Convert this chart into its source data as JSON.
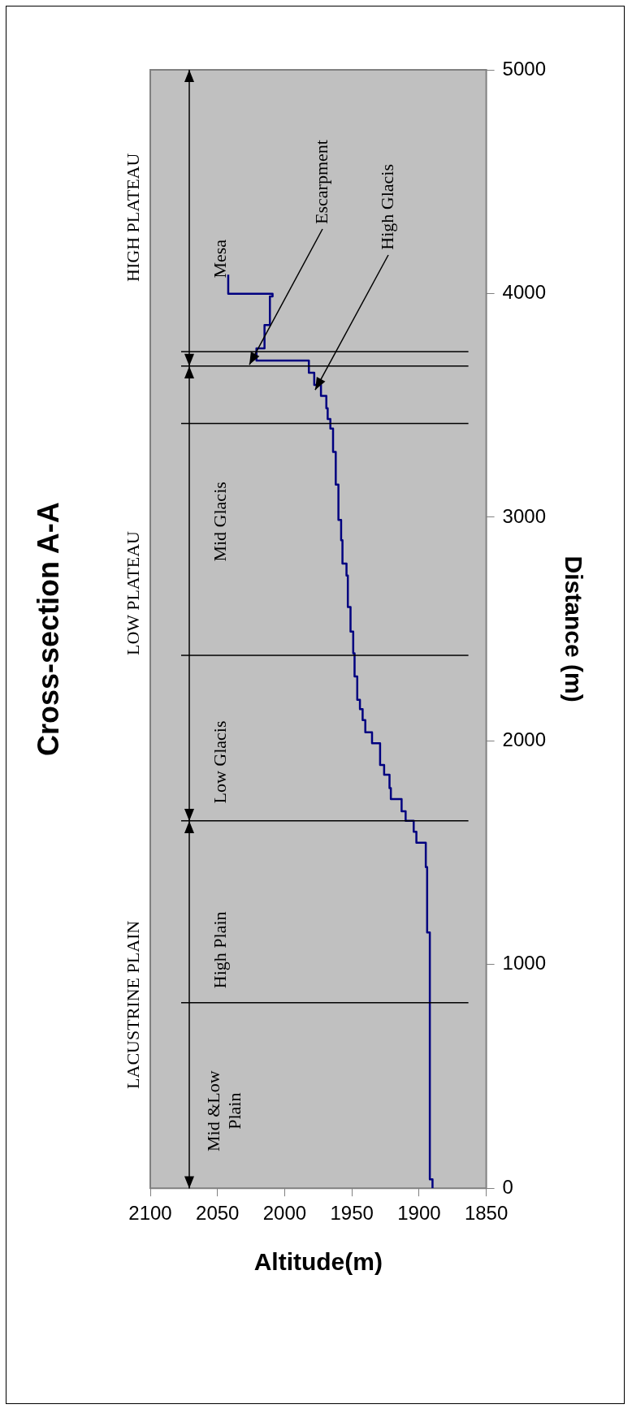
{
  "chart_data": {
    "type": "line",
    "title": "Cross-section A-A",
    "xlabel": "Altitude(m)",
    "ylabel": "Distance (m)",
    "series": [
      {
        "color": "#000080",
        "x": [
          1890,
          1890,
          1892,
          1892,
          1894,
          1894,
          1895,
          1895,
          1902,
          1902,
          1904,
          1904,
          1910,
          1910,
          1913,
          1913,
          1921,
          1921,
          1922,
          1922,
          1926,
          1926,
          1929,
          1929,
          1935,
          1935,
          1940,
          1940,
          1942,
          1942,
          1944,
          1944,
          1946,
          1946,
          1948,
          1948,
          1949,
          1949,
          1951,
          1951,
          1953,
          1953,
          1954,
          1954,
          1957,
          1957,
          1958,
          1958,
          1960,
          1960,
          1962,
          1962,
          1964,
          1964,
          1966,
          1966,
          1968,
          1968,
          1969,
          1969,
          1973,
          1973,
          1978,
          1978,
          1982,
          1982,
          2021,
          2021,
          2015,
          2015,
          2011,
          2011,
          2009,
          2009,
          2042,
          2042
        ],
        "values": [
          0,
          40,
          40,
          1143,
          1143,
          1436,
          1436,
          1545,
          1545,
          1594,
          1594,
          1643,
          1643,
          1685,
          1685,
          1740,
          1740,
          1789,
          1789,
          1849,
          1849,
          1892,
          1892,
          1989,
          1989,
          2038,
          2038,
          2093,
          2093,
          2142,
          2142,
          2184,
          2184,
          2288,
          2288,
          2391,
          2391,
          2489,
          2489,
          2598,
          2598,
          2739,
          2739,
          2793,
          2793,
          2897,
          2897,
          2988,
          2988,
          3146,
          3146,
          3292,
          3292,
          3396,
          3396,
          3439,
          3439,
          3487,
          3487,
          3542,
          3542,
          3591,
          3591,
          3646,
          3646,
          3700,
          3700,
          3755,
          3755,
          3859,
          3859,
          3987,
          3987,
          3999,
          3999,
          4084
        ]
      }
    ],
    "xlim": [
      2100,
      1850
    ],
    "xticks": [
      2100,
      2050,
      2000,
      1950,
      1900,
      1850
    ],
    "ylim": [
      0,
      5000
    ],
    "yticks": [
      0,
      1000,
      2000,
      3000,
      4000,
      5000
    ],
    "marker": "none",
    "ref_lines": [
      {
        "axis": "y",
        "value": 829,
        "color": "#000000"
      },
      {
        "axis": "y",
        "value": 1643,
        "color": "#000000"
      },
      {
        "axis": "y",
        "value": 2382,
        "color": "#000000"
      },
      {
        "axis": "y",
        "value": 3419,
        "color": "#000000"
      },
      {
        "axis": "y",
        "value": 3676,
        "color": "#000000"
      },
      {
        "axis": "y",
        "value": 3740,
        "color": "#000000"
      }
    ],
    "annotations": [
      "LACUSTRINE PLAIN",
      "LOW PLATEAU",
      "HIGH PLATEAU",
      "Mid &Low Plain",
      "High Plain",
      "Low Glacis",
      "Mid Glacis",
      "Mesa",
      {
        "text": "Escarpment",
        "x": 2026,
        "y": 3682
      },
      {
        "text": "High Glacis",
        "x": 1977,
        "y": 3570
      }
    ]
  }
}
